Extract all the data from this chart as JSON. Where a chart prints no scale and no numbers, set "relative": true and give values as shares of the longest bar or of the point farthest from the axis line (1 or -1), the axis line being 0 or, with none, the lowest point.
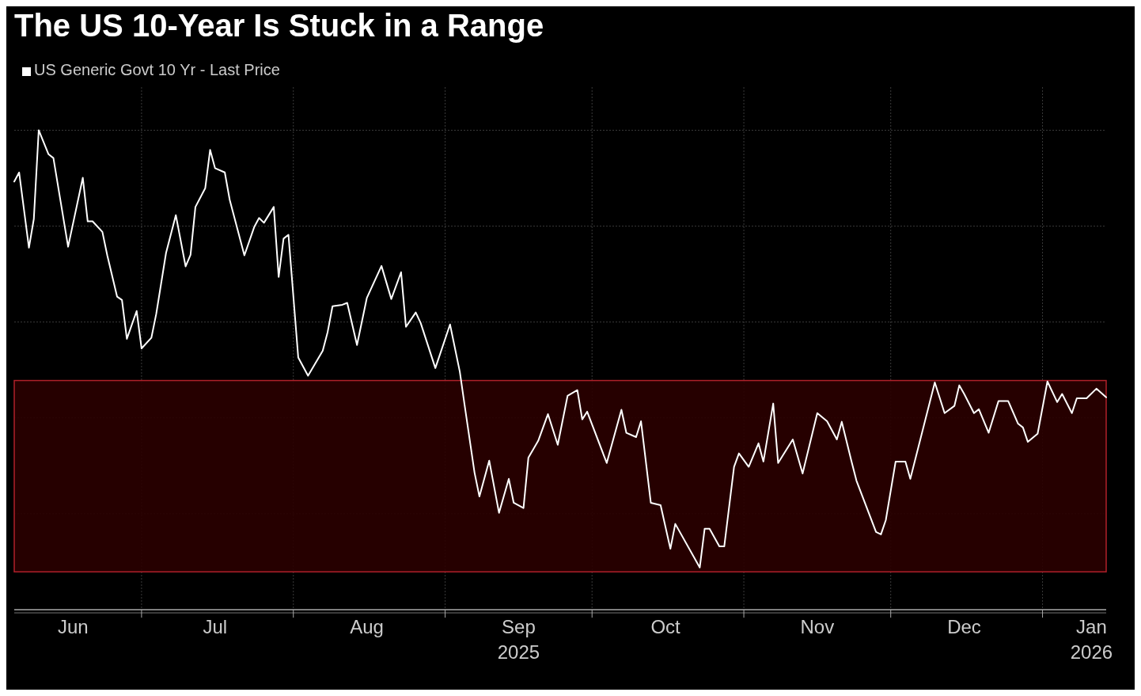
{
  "chart_data": {
    "type": "line",
    "title": "The US 10-Year Is Stuck in a Range",
    "relative": true,
    "legend": "top left",
    "grid": true,
    "marker": "none",
    "xlim": [
      "2025-06-05",
      "2026-01-14"
    ],
    "xticks": [
      {
        "value": "2025-06-17",
        "label": "Jun"
      },
      {
        "value": "2025-07-01",
        "label": null
      },
      {
        "value": "2025-07-16",
        "label": "Jul"
      },
      {
        "value": "2025-08-01",
        "label": null
      },
      {
        "value": "2025-08-16",
        "label": "Aug"
      },
      {
        "value": "2025-09-01",
        "label": null
      },
      {
        "value": "2025-09-16",
        "label": "Sep\n2025"
      },
      {
        "value": "2025-10-01",
        "label": null
      },
      {
        "value": "2025-10-16",
        "label": "Oct"
      },
      {
        "value": "2025-11-01",
        "label": null
      },
      {
        "value": "2025-11-16",
        "label": "Nov"
      },
      {
        "value": "2025-12-01",
        "label": null
      },
      {
        "value": "2025-12-16",
        "label": "Dec"
      },
      {
        "value": "2026-01-01",
        "label": null
      },
      {
        "value": "2026-01-11",
        "label": "Jan\n2026"
      }
    ],
    "bands": [
      {
        "axis": "y",
        "from": 0.079,
        "to": 0.478,
        "color": "#2a0000"
      }
    ],
    "series": [
      {
        "name": "US Generic Govt 10 Yr - Last Price",
        "color": "#ffffff",
        "x": [
          "2025-06-05",
          "2025-06-06",
          "2025-06-08",
          "2025-06-09",
          "2025-06-10",
          "2025-06-12",
          "2025-06-13",
          "2025-06-16",
          "2025-06-19",
          "2025-06-20",
          "2025-06-21",
          "2025-06-23",
          "2025-06-24",
          "2025-06-26",
          "2025-06-27",
          "2025-06-28",
          "2025-06-30",
          "2025-07-01",
          "2025-07-03",
          "2025-07-04",
          "2025-07-06",
          "2025-07-08",
          "2025-07-10",
          "2025-07-11",
          "2025-07-12",
          "2025-07-14",
          "2025-07-15",
          "2025-07-16",
          "2025-07-18",
          "2025-07-19",
          "2025-07-22",
          "2025-07-24",
          "2025-07-25",
          "2025-07-26",
          "2025-07-28",
          "2025-07-29",
          "2025-07-30",
          "2025-07-31",
          "2025-08-02",
          "2025-08-04",
          "2025-08-07",
          "2025-08-08",
          "2025-08-09",
          "2025-08-11",
          "2025-08-12",
          "2025-08-14",
          "2025-08-16",
          "2025-08-19",
          "2025-08-21",
          "2025-08-23",
          "2025-08-24",
          "2025-08-26",
          "2025-08-27",
          "2025-08-30",
          "2025-09-02",
          "2025-09-04",
          "2025-09-05",
          "2025-09-07",
          "2025-09-08",
          "2025-09-10",
          "2025-09-12",
          "2025-09-14",
          "2025-09-15",
          "2025-09-17",
          "2025-09-18",
          "2025-09-20",
          "2025-09-22",
          "2025-09-24",
          "2025-09-26",
          "2025-09-28",
          "2025-09-29",
          "2025-09-30",
          "2025-10-04",
          "2025-10-07",
          "2025-10-08",
          "2025-10-10",
          "2025-10-11",
          "2025-10-13",
          "2025-10-15",
          "2025-10-17",
          "2025-10-18",
          "2025-10-23",
          "2025-10-24",
          "2025-10-25",
          "2025-10-27",
          "2025-10-28",
          "2025-10-30",
          "2025-10-31",
          "2025-11-02",
          "2025-11-04",
          "2025-11-05",
          "2025-11-07",
          "2025-11-08",
          "2025-11-11",
          "2025-11-13",
          "2025-11-16",
          "2025-11-18",
          "2025-11-20",
          "2025-11-21",
          "2025-11-23",
          "2025-11-24",
          "2025-11-28",
          "2025-11-29",
          "2025-11-30",
          "2025-12-02",
          "2025-12-04",
          "2025-12-05",
          "2025-12-10",
          "2025-12-12",
          "2025-12-14",
          "2025-12-15",
          "2025-12-16",
          "2025-12-18",
          "2025-12-19",
          "2025-12-21",
          "2025-12-23",
          "2025-12-25",
          "2025-12-27",
          "2025-12-28",
          "2025-12-29",
          "2025-12-31",
          "2026-01-02",
          "2026-01-04",
          "2026-01-05",
          "2026-01-07",
          "2026-01-08",
          "2026-01-10",
          "2026-01-12",
          "2026-01-14"
        ],
        "values": [
          0.893,
          0.912,
          0.755,
          0.815,
          1,
          0.95,
          0.942,
          0.757,
          0.901,
          0.81,
          0.81,
          0.788,
          0.739,
          0.653,
          0.646,
          0.565,
          0.623,
          0.545,
          0.567,
          0.617,
          0.744,
          0.823,
          0.716,
          0.74,
          0.84,
          0.879,
          0.959,
          0.921,
          0.912,
          0.855,
          0.739,
          0.798,
          0.817,
          0.807,
          0.84,
          0.694,
          0.774,
          0.782,
          0.526,
          0.488,
          0.54,
          0.579,
          0.633,
          0.636,
          0.64,
          0.552,
          0.65,
          0.717,
          0.648,
          0.704,
          0.59,
          0.62,
          0.598,
          0.504,
          0.595,
          0.496,
          0.425,
          0.286,
          0.236,
          0.311,
          0.202,
          0.273,
          0.223,
          0.212,
          0.317,
          0.352,
          0.408,
          0.344,
          0.446,
          0.458,
          0.397,
          0.413,
          0.306,
          0.417,
          0.369,
          0.36,
          0.393,
          0.223,
          0.218,
          0.127,
          0.179,
          0.088,
          0.169,
          0.169,
          0.132,
          0.132,
          0.298,
          0.326,
          0.298,
          0.347,
          0.309,
          0.43,
          0.306,
          0.355,
          0.284,
          0.41,
          0.393,
          0.355,
          0.392,
          0.309,
          0.269,
          0.162,
          0.157,
          0.187,
          0.309,
          0.309,
          0.273,
          0.474,
          0.41,
          0.425,
          0.468,
          0.45,
          0.41,
          0.418,
          0.369,
          0.435,
          0.435,
          0.388,
          0.38,
          0.35,
          0.367,
          0.476,
          0.433,
          0.45,
          0.41,
          0.441,
          0.441,
          0.461,
          0.443
        ]
      }
    ]
  }
}
